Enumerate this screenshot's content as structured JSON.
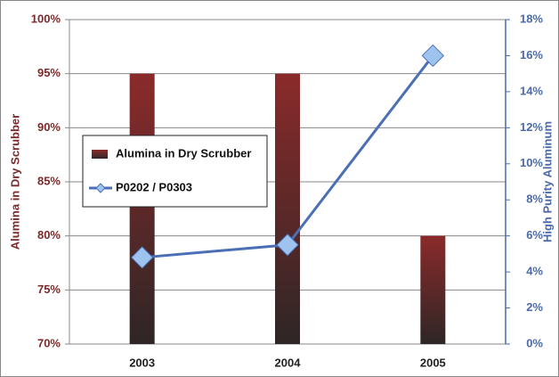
{
  "chart_data": {
    "type": "bar-line",
    "categories": [
      "2003",
      "2004",
      "2005"
    ],
    "ylabel": "Alumina in Dry Scrubber",
    "y2label": "High Purity Aluminum",
    "ylim": [
      70,
      100
    ],
    "yticks": [
      {
        "value": 70,
        "label": "70%"
      },
      {
        "value": 75,
        "label": "75%"
      },
      {
        "value": 80,
        "label": "80%"
      },
      {
        "value": 85,
        "label": "85%"
      },
      {
        "value": 90,
        "label": "90%"
      },
      {
        "value": 95,
        "label": "95%"
      },
      {
        "value": 100,
        "label": "100%"
      }
    ],
    "y2lim": [
      0,
      18
    ],
    "y2ticks": [
      {
        "value": 0,
        "label": "0%"
      },
      {
        "value": 2,
        "label": "2%"
      },
      {
        "value": 4,
        "label": "4%"
      },
      {
        "value": 6,
        "label": "6%"
      },
      {
        "value": 8,
        "label": "8%"
      },
      {
        "value": 10,
        "label": "10%"
      },
      {
        "value": 12,
        "label": "12%"
      },
      {
        "value": 14,
        "label": "14%"
      },
      {
        "value": 16,
        "label": "16%"
      },
      {
        "value": 18,
        "label": "18%"
      }
    ],
    "grid": true,
    "series": [
      {
        "name": "Alumina in Dry Scrubber",
        "type": "bar",
        "color": "#8b2a2a",
        "values": [
          95,
          95,
          80
        ]
      },
      {
        "name": "P0202 / P0303",
        "type": "line",
        "axis": "y2",
        "color": "#4a6fb5",
        "marker_color": "#9dc3ee",
        "values": [
          4.8,
          5.5,
          16
        ]
      }
    ]
  }
}
